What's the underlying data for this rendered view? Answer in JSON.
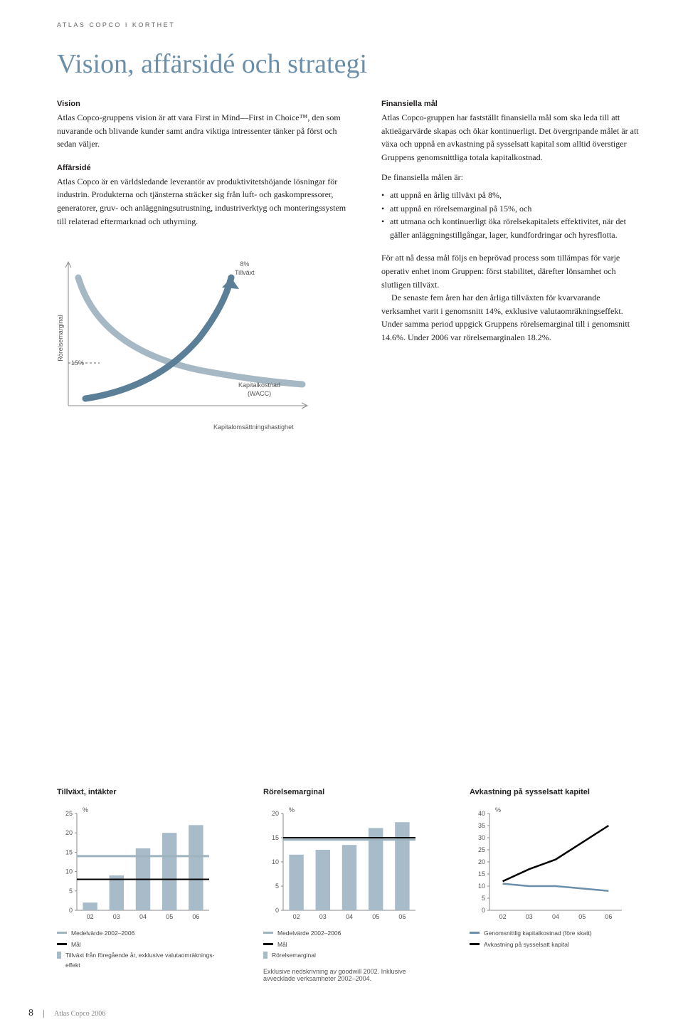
{
  "header_label": "ATLAS COPCO I KORTHET",
  "page_title": "Vision, affärsidé och strategi",
  "left_col": {
    "vision_head": "Vision",
    "vision_body": "Atlas Copco-gruppens vision är att vara First in Mind—First in Choice™, den som nuvarande och blivande kunder samt andra viktiga intressenter tänker på först och sedan väljer.",
    "affarside_head": "Affärsidé",
    "affarside_body": "Atlas Copco är en världsledande leverantör av produktivitets­höjande lösningar för industrin. Produkterna och tjänsterna sträcker sig från luft- och gaskompressorer, generatorer, gruv- och anläggningsutrustning, industriverktyg och monteringssystem till relaterad eftermarknad och uthyrning."
  },
  "right_col": {
    "fin_head": "Finansiella mål",
    "fin_body1": "Atlas Copco-gruppen har fastställt finansiella mål som ska leda till att aktieägarvärde skapas och ökar kontinuerligt. Det övergripande målet är att växa och uppnå en avkastning på sysselsatt kapital som alltid överstiger Gruppens genomsnittliga totala kapitalkostnad.",
    "goals_intro": "De finansiella målen är:",
    "goals": [
      "att uppnå en årlig tillväxt på 8%,",
      "att uppnå en rörelsemarginal på 15%, och",
      "att utmana och kontinuerligt öka rörelsekapitalets effektivitet, när det gäller anläggningstillgångar, lager, kundfordringar och hyresflotta."
    ],
    "fin_body2": "För att nå dessa mål följs en beprövad process som tillämpas för varje operativ enhet inom Gruppen: först stabilitet, därefter lönsamhet och slutligen tillväxt.",
    "fin_body3": "De senaste fem åren har den årliga tillväxten för kvarvarande verksamhet varit i genomsnitt 14%, exklusive valutaomräkningseffekt. Under samma period uppgick Gruppens rörelsemarginal till i genomsnitt 14.6%. Under 2006 var rörelsemarginalen 18.2%."
  },
  "diagram": {
    "ylabel": "Rörelsemarginal",
    "fifteen": "15%",
    "growth_label": "8%\nTillväxt",
    "wacc_label": "Kapitalkostnad\n(WACC)",
    "xlabel": "Kapitalomsättningshastighet",
    "curve1_color": "#a6b8c4",
    "curve2_color": "#5b7f97",
    "axis_color": "#888888",
    "dash_color": "#666666"
  },
  "charts": {
    "growth": {
      "title": "Tillväxt, intäkter",
      "unit": "%",
      "categories": [
        "02",
        "03",
        "04",
        "05",
        "06"
      ],
      "values": [
        2,
        9,
        16,
        20,
        22
      ],
      "ylim": [
        0,
        25
      ],
      "ytick_step": 5,
      "mean_line": 14,
      "goal_line": 8,
      "bar_color": "#a7bcc8",
      "mean_color": "#a0b4bf",
      "goal_color": "#000000",
      "legend": {
        "mean": "Medelvärde 2002–2006",
        "goal": "Mål",
        "bars": "Tillväxt från föregående år, exklusive valutaomräknings-effekt"
      }
    },
    "margin": {
      "title": "Rörelsemarginal",
      "unit": "%",
      "categories": [
        "02",
        "03",
        "04",
        "05",
        "06"
      ],
      "values": [
        11.5,
        12.5,
        13.5,
        17,
        18.2
      ],
      "ylim": [
        0,
        20
      ],
      "ytick_step": 5,
      "mean_line": 14.6,
      "goal_line": 15,
      "bar_color": "#a7bcc8",
      "mean_color": "#a0b4bf",
      "goal_color": "#000000",
      "legend": {
        "mean": "Medelvärde 2002–2006",
        "goal": "Mål",
        "bars": "Rörelsemarginal"
      }
    },
    "roce": {
      "title": "Avkastning på sysselsatt kapitel",
      "unit": "%",
      "categories": [
        "02",
        "03",
        "04",
        "05",
        "06"
      ],
      "cost_line": [
        11,
        10,
        10,
        9,
        8
      ],
      "roce_line": [
        12,
        17,
        21,
        28,
        35
      ],
      "ylim": [
        0,
        40
      ],
      "ytick_step": 5,
      "cost_color": "#6b8fa8",
      "roce_color": "#000000",
      "legend": {
        "cost": "Genomsnittlig kapitalkostnad (före skatt)",
        "roce": "Avkastning på sysselsatt kapital"
      }
    },
    "goodwill_note": "Exklusive nedskrivning av goodwill 2002. Inklusive avvecklade verksamheter 2002–2004."
  },
  "footer": {
    "page": "8",
    "text": "Atlas Copco 2006"
  }
}
